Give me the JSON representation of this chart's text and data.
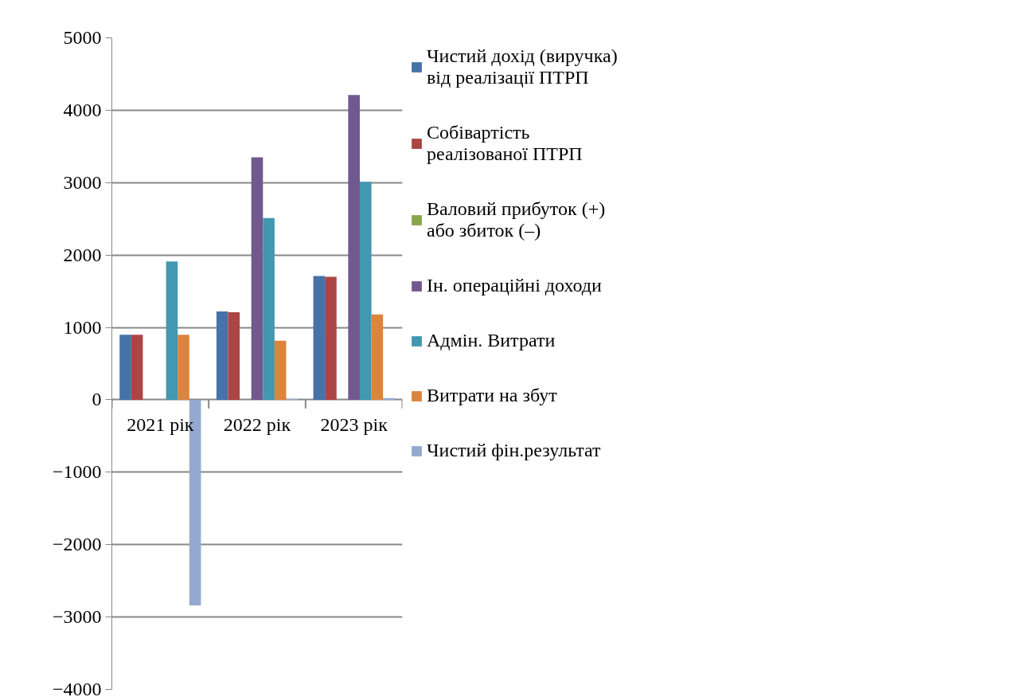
{
  "chart_data": {
    "type": "bar",
    "categories": [
      "2021 рік",
      "2022 рік",
      "2023 рік"
    ],
    "series": [
      {
        "name": "Чистий дохід (виручка) від реалізації ПТРП",
        "color": "#4572a7",
        "values": [
          900,
          1220,
          1710
        ]
      },
      {
        "name": "Собівартість реалізованої ПТРП",
        "color": "#aa4643",
        "values": [
          900,
          1210,
          1700
        ]
      },
      {
        "name": "Валовий прибуток (+) або збиток (–)",
        "color": "#89a54e",
        "values": [
          0,
          0,
          0
        ]
      },
      {
        "name": "Ін. операційні доходи",
        "color": "#71588f",
        "values": [
          0,
          3350,
          4210
        ]
      },
      {
        "name": "Адмін. Витрати",
        "color": "#4198af",
        "values": [
          1910,
          2510,
          3010
        ]
      },
      {
        "name": "Витрати на збут",
        "color": "#db843d",
        "values": [
          900,
          815,
          1180
        ]
      },
      {
        "name": "Чистий фін.результат",
        "color": "#93a9cf",
        "values": [
          -2840,
          10,
          25
        ]
      }
    ],
    "ylim": [
      -4000,
      5000
    ],
    "yticks": [
      -4000,
      -3000,
      -2000,
      -1000,
      0,
      1000,
      2000,
      3000,
      4000,
      5000
    ],
    "grid": "y",
    "legend": "right"
  }
}
